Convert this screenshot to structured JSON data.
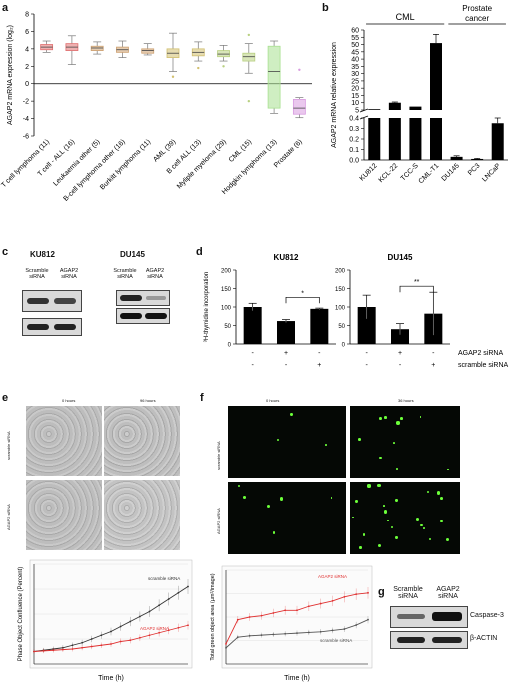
{
  "panel_a": {
    "letter": "a",
    "ylabel": "AGAP2 mRNA expression (log₂)",
    "chart_data": {
      "type": "box",
      "categories": [
        "T cell lymphoma (11)",
        "T cell - ALL (16)",
        "Leukaemia other (5)",
        "B-cell lymphoma other (16)",
        "Burkitt lymphoma (11)",
        "AML (39)",
        "B cell ALL (13)",
        "Myliple myeloma (29)",
        "CML (15)",
        "Hodgkin lymphoma (13)",
        "Prostate (6)"
      ],
      "boxes": [
        {
          "min": 3.6,
          "q1": 3.9,
          "median": 4.2,
          "q3": 4.5,
          "max": 4.9,
          "color": "#e07070"
        },
        {
          "min": 2.2,
          "q1": 3.8,
          "median": 4.2,
          "q3": 4.6,
          "max": 5.5,
          "color": "#e07070"
        },
        {
          "min": 3.4,
          "q1": 3.8,
          "median": 4.1,
          "q3": 4.3,
          "max": 4.8,
          "color": "#cda070"
        },
        {
          "min": 3.0,
          "q1": 3.6,
          "median": 3.9,
          "q3": 4.2,
          "max": 4.9,
          "color": "#cda070"
        },
        {
          "min": 3.3,
          "q1": 3.5,
          "median": 3.8,
          "q3": 4.0,
          "max": 4.6,
          "color": "#cda070"
        },
        {
          "min": 1.4,
          "q1": 3.0,
          "median": 3.5,
          "q3": 4.0,
          "max": 5.8,
          "color": "#d2c070",
          "outliers": [
            0.8
          ]
        },
        {
          "min": 2.6,
          "q1": 3.2,
          "median": 3.6,
          "q3": 4.0,
          "max": 4.8,
          "color": "#d2c070",
          "outliers": [
            1.8
          ]
        },
        {
          "min": 2.6,
          "q1": 3.1,
          "median": 3.4,
          "q3": 3.8,
          "max": 4.4,
          "color": "#b8d080",
          "outliers": [
            2.0
          ]
        },
        {
          "min": 1.2,
          "q1": 2.6,
          "median": 3.1,
          "q3": 3.5,
          "max": 4.6,
          "color": "#b8d080",
          "outliers": [
            5.6,
            -2.0
          ]
        },
        {
          "min": -3.4,
          "q1": -2.8,
          "median": 1.4,
          "q3": 4.3,
          "max": 4.9,
          "color": "#a8e090"
        },
        {
          "min": -3.9,
          "q1": -3.5,
          "median": -2.8,
          "q3": -1.8,
          "max": -1.6,
          "color": "#d89be0",
          "outliers": [
            1.6
          ]
        }
      ],
      "ylim": [
        -6,
        8
      ],
      "yticks": [
        "8",
        "6",
        "4",
        "2",
        "0",
        "-2",
        "-4",
        "-6"
      ]
    }
  },
  "panel_b": {
    "letter": "b",
    "group_cml": "CML",
    "group_prostate": "Prostate cancer",
    "ylabel": "AGAP2 mRNA relative expression",
    "chart_data": {
      "type": "bar",
      "categories": [
        "KU812",
        "KCL-22",
        "TCC-S",
        "CML-T1",
        "DU145",
        "PC3",
        "LNCaP"
      ],
      "values": [
        1,
        10,
        3,
        51,
        0.03,
        0.01,
        0.35
      ],
      "errors": [
        0.05,
        0.5,
        0.2,
        6,
        0.01,
        0.005,
        0.05
      ],
      "yticks_upper": [
        "60",
        "55",
        "50",
        "45",
        "40",
        "35",
        "30",
        "25",
        "20",
        "15",
        "10",
        "5"
      ],
      "yticks_lower": [
        "0.4",
        "0.3",
        "0.2",
        "0.1",
        "0.0"
      ]
    }
  },
  "panel_c": {
    "letter": "c",
    "ku812": "KU812",
    "du145": "DU145",
    "scramble": "Scramble",
    "agap2": "AGAP2",
    "sirna": "siRNA"
  },
  "panel_d": {
    "letter": "d",
    "ylabel": "³H-thymidine incorporation",
    "ku812": "KU812",
    "du145": "DU145",
    "star_ku812": "*",
    "star_du145": "**",
    "row_agap2": "AGAP2 siRNA",
    "row_scramble": "scramble siRNA",
    "minus": "-",
    "plus": "+",
    "yticks": [
      "200",
      "150",
      "100",
      "50",
      "0"
    ],
    "chart_data": {
      "type": "bar",
      "series": [
        {
          "name": "KU812",
          "values": [
            100,
            62,
            95
          ],
          "errors": [
            10,
            4,
            2
          ]
        },
        {
          "name": "DU145",
          "values": [
            100,
            40,
            82
          ],
          "errors": [
            32,
            15,
            58
          ]
        }
      ],
      "ylim": [
        0,
        200
      ]
    }
  },
  "panel_e": {
    "letter": "e",
    "col0": "0 hours",
    "col1": "96 hours",
    "row0": "scramble siRNA",
    "row1": "AGAP2 siRNA",
    "ylabel": "Phase Object Confluence (Percent)",
    "xlabel": "Time (h)",
    "legend_scramble": "scramble siRNA",
    "legend_agap2": "AGAP2 siRNA",
    "chart_data": {
      "type": "line",
      "x": [
        0,
        6,
        12,
        18,
        24,
        30,
        36,
        42,
        48,
        54,
        60,
        66,
        72,
        78,
        84,
        90,
        96
      ],
      "series": [
        {
          "name": "scramble siRNA",
          "values": [
            10,
            11,
            12,
            13,
            15,
            17,
            20,
            23,
            26,
            30,
            34,
            38,
            42,
            47,
            52,
            57,
            62
          ],
          "color": "#333333"
        },
        {
          "name": "AGAP2 siRNA",
          "values": [
            10,
            10.5,
            11,
            11.5,
            12,
            13,
            14,
            15,
            16,
            18,
            19,
            21,
            23,
            25,
            27,
            29,
            31
          ],
          "color": "#e03030"
        }
      ],
      "ylim": [
        0,
        80
      ]
    }
  },
  "panel_f": {
    "letter": "f",
    "col0": "0 hours",
    "col1": "36 hours",
    "row0": "scramble siRNA",
    "row1": "AGAP2 siRNA",
    "ylabel": "Total green object area (µm²/image)",
    "xlabel": "Time (h)",
    "legend_agap2": "AGAP2 siRNA",
    "legend_scramble": "scramble siRNA",
    "chart_data": {
      "type": "line",
      "x": [
        0,
        3,
        6,
        9,
        12,
        15,
        18,
        21,
        24,
        27,
        30,
        33,
        36
      ],
      "series": [
        {
          "name": "AGAP2 siRNA",
          "values": [
            150,
            330,
            350,
            360,
            380,
            400,
            400,
            430,
            450,
            470,
            500,
            520,
            530
          ],
          "color": "#e03030"
        },
        {
          "name": "scramble siRNA",
          "values": [
            120,
            200,
            210,
            215,
            220,
            225,
            230,
            235,
            240,
            250,
            260,
            290,
            330
          ],
          "color": "#555555"
        }
      ],
      "ylim": [
        0,
        700
      ]
    }
  },
  "panel_g": {
    "letter": "g",
    "scramble": "Scramble",
    "agap2": "AGAP2",
    "sirna": "siRNA",
    "caspase": "Caspase-3",
    "actin": "β-ACTIN"
  }
}
